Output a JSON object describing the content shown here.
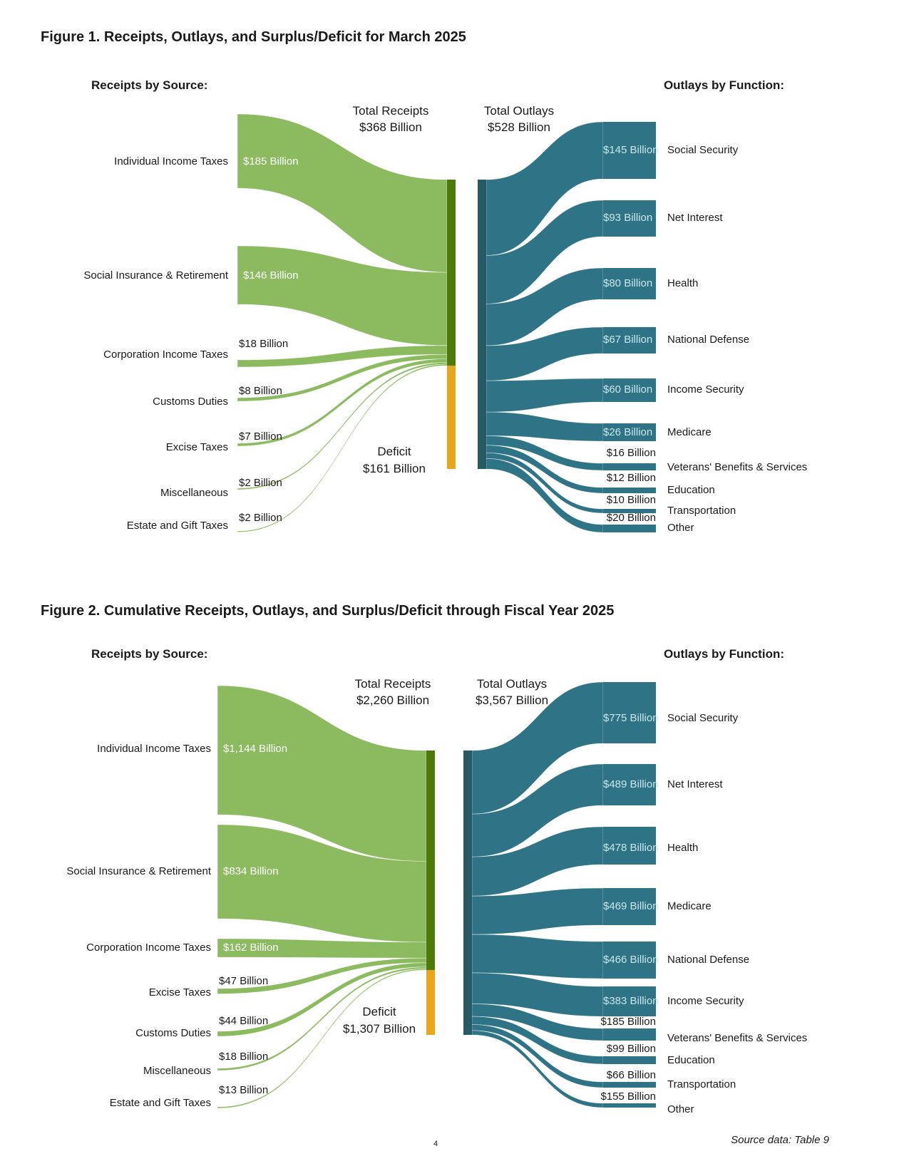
{
  "colors": {
    "flow_green": "#8cba5f",
    "bar_olive": "#4e7a09",
    "bar_orange": "#e9a51c",
    "flow_teal": "#2f7386",
    "bar_teal": "#265b66",
    "value_text_on_green": "#ffffff",
    "value_text_on_teal": "#c9e6ec",
    "text_dark": "#1a1a1a"
  },
  "page": {
    "footer_page_number": "4",
    "source_note": "Source data: Table 9"
  },
  "figure1": {
    "title": "Figure 1. Receipts, Outlays, and Surplus/Deficit for March 2025",
    "receipts_header": "Receipts by Source:",
    "outlays_header": "Outlays by Function:",
    "total_receipts": {
      "label": "Total Receipts",
      "value": "$368 Billion"
    },
    "total_outlays": {
      "label": "Total Outlays",
      "value": "$528 Billion"
    },
    "deficit": {
      "label": "Deficit",
      "value": "$161 Billion"
    },
    "chart_data": {
      "type": "sankey",
      "title": "Receipts, Outlays, and Surplus/Deficit for March 2025",
      "units": "billions of dollars",
      "totals": {
        "receipts": 368,
        "outlays": 528,
        "deficit": 161
      },
      "receipts": [
        {
          "name": "Individual Income Taxes",
          "value": 185,
          "label": "$185 Billion"
        },
        {
          "name": "Social Insurance & Retirement",
          "value": 146,
          "label": "$146 Billion"
        },
        {
          "name": "Corporation Income Taxes",
          "value": 18,
          "label": "$18 Billion"
        },
        {
          "name": "Customs Duties",
          "value": 8,
          "label": "$8 Billion"
        },
        {
          "name": "Excise Taxes",
          "value": 7,
          "label": "$7 Billion"
        },
        {
          "name": "Miscellaneous",
          "value": 2,
          "label": "$2 Billion"
        },
        {
          "name": "Estate and Gift Taxes",
          "value": 2,
          "label": "$2 Billion"
        }
      ],
      "outlays": [
        {
          "name": "Social Security",
          "value": 145,
          "label": "$145 Billion"
        },
        {
          "name": "Net Interest",
          "value": 93,
          "label": "$93 Billion"
        },
        {
          "name": "Health",
          "value": 80,
          "label": "$80 Billion"
        },
        {
          "name": "National Defense",
          "value": 67,
          "label": "$67 Billion"
        },
        {
          "name": "Income Security",
          "value": 60,
          "label": "$60 Billion"
        },
        {
          "name": "Medicare",
          "value": 26,
          "label": "$26 Billion"
        },
        {
          "name": "Veterans' Benefits & Services",
          "value": 16,
          "label": "$16 Billion"
        },
        {
          "name": "Education",
          "value": 12,
          "label": "$12 Billion"
        },
        {
          "name": "Transportation",
          "value": 10,
          "label": "$10 Billion"
        },
        {
          "name": "Other",
          "value": 20,
          "label": "$20 Billion"
        }
      ]
    }
  },
  "figure2": {
    "title": "Figure 2. Cumulative Receipts, Outlays, and Surplus/Deficit through Fiscal Year 2025",
    "receipts_header": "Receipts by Source:",
    "outlays_header": "Outlays by Function:",
    "total_receipts": {
      "label": "Total Receipts",
      "value": "$2,260 Billion"
    },
    "total_outlays": {
      "label": "Total Outlays",
      "value": "$3,567 Billion"
    },
    "deficit": {
      "label": "Deficit",
      "value": "$1,307 Billion"
    },
    "chart_data": {
      "type": "sankey",
      "title": "Cumulative Receipts, Outlays, and Surplus/Deficit through Fiscal Year 2025",
      "units": "billions of dollars",
      "totals": {
        "receipts": 2260,
        "outlays": 3567,
        "deficit": 1307
      },
      "receipts": [
        {
          "name": "Individual Income Taxes",
          "value": 1144,
          "label": "$1,144 Billion"
        },
        {
          "name": "Social Insurance & Retirement",
          "value": 834,
          "label": "$834 Billion"
        },
        {
          "name": "Corporation Income Taxes",
          "value": 162,
          "label": "$162 Billion"
        },
        {
          "name": "Excise Taxes",
          "value": 47,
          "label": "$47 Billion"
        },
        {
          "name": "Customs Duties",
          "value": 44,
          "label": "$44 Billion"
        },
        {
          "name": "Miscellaneous",
          "value": 18,
          "label": "$18 Billion"
        },
        {
          "name": "Estate and Gift Taxes",
          "value": 13,
          "label": "$13 Billion"
        }
      ],
      "outlays": [
        {
          "name": "Social Security",
          "value": 775,
          "label": "$775 Billion"
        },
        {
          "name": "Net Interest",
          "value": 489,
          "label": "$489 Billion"
        },
        {
          "name": "Health",
          "value": 478,
          "label": "$478 Billion"
        },
        {
          "name": "Medicare",
          "value": 469,
          "label": "$469 Billion"
        },
        {
          "name": "National Defense",
          "value": 466,
          "label": "$466 Billion"
        },
        {
          "name": "Income Security",
          "value": 383,
          "label": "$383 Billion"
        },
        {
          "name": "Veterans' Benefits & Services",
          "value": 185,
          "label": "$185 Billion"
        },
        {
          "name": "Education",
          "value": 99,
          "label": "$99 Billion"
        },
        {
          "name": "Transportation",
          "value": 66,
          "label": "$66 Billion"
        },
        {
          "name": "Other",
          "value": 155,
          "label": "$155 Billion"
        }
      ]
    }
  }
}
